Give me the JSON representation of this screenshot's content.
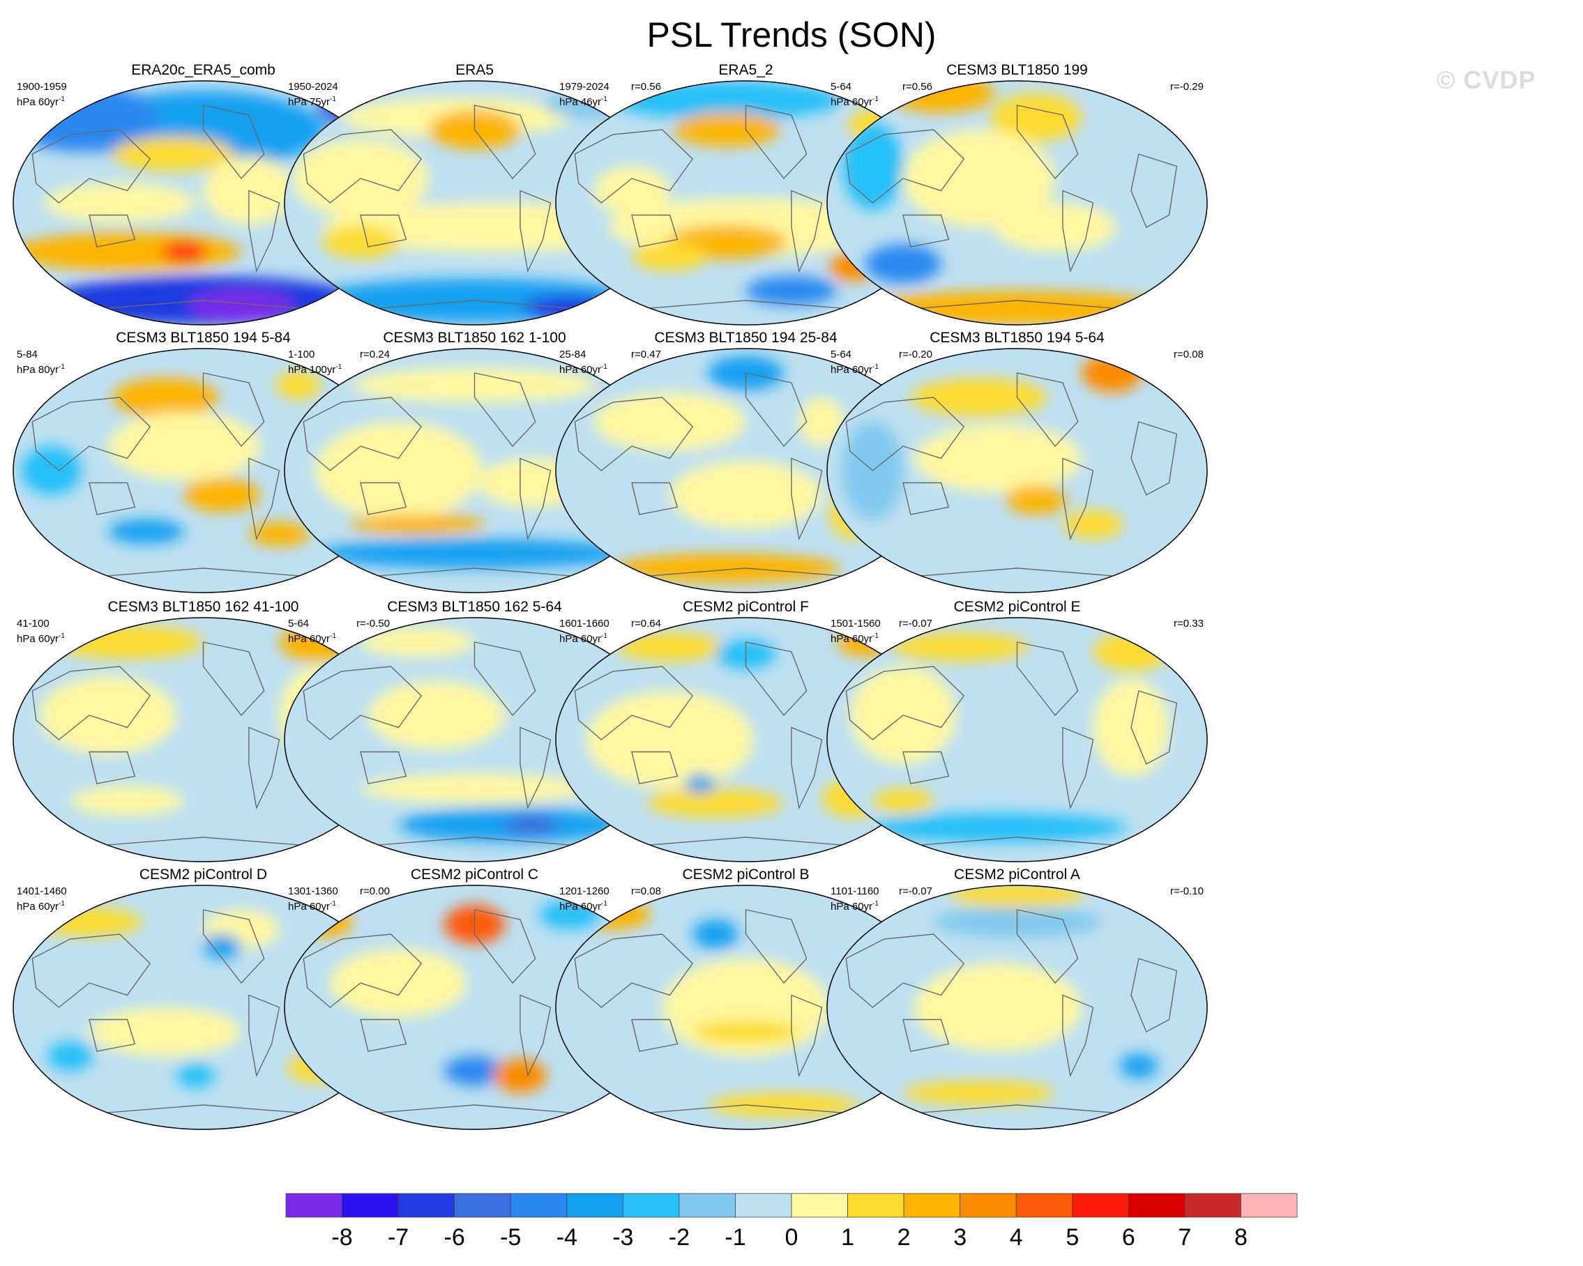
{
  "title": "PSL Trends (SON)",
  "watermark": "© CVDP",
  "chart_data": {
    "type": "heatmap",
    "title": "PSL Trends (SON)",
    "projection": "global map (Hammer)",
    "colorbar": {
      "tick_labels": [
        "-8",
        "-7",
        "-6",
        "-5",
        "-4",
        "-3",
        "-2",
        "-1",
        "0",
        "1",
        "2",
        "3",
        "4",
        "5",
        "6",
        "7",
        "8"
      ],
      "colors": [
        "#7a2be8",
        "#2b10f0",
        "#1f3ae0",
        "#3a6ee0",
        "#2a88f0",
        "#14a0f0",
        "#28c0f8",
        "#80c8ee",
        "#bde0f2",
        "#fef8a0",
        "#fddc30",
        "#fcb400",
        "#fc8c00",
        "#fc5c0a",
        "#fc1a0a",
        "#dc0000",
        "#c82828",
        "#fcb4b4"
      ]
    },
    "panels": [
      {
        "title": "ERA20c_ERA5_comb",
        "period": "1900-1959",
        "units": "hPa 60yr",
        "units_exp": "-1",
        "r": "",
        "blobs": [
          [
            0.5,
            0.2,
            0.32,
            0.16,
            -3
          ],
          [
            0.18,
            0.15,
            0.2,
            0.14,
            -4
          ],
          [
            0.9,
            0.1,
            0.1,
            0.1,
            -5
          ],
          [
            0.42,
            0.3,
            0.16,
            0.07,
            2
          ],
          [
            0.28,
            0.5,
            0.2,
            0.08,
            1
          ],
          [
            0.62,
            0.45,
            0.12,
            0.14,
            1
          ],
          [
            0.3,
            0.7,
            0.3,
            0.08,
            3
          ],
          [
            0.45,
            0.7,
            0.06,
            0.04,
            6
          ],
          [
            0.5,
            0.9,
            0.42,
            0.1,
            -6
          ],
          [
            0.6,
            0.92,
            0.14,
            0.06,
            -8
          ]
        ]
      },
      {
        "title": "ERA5",
        "period": "1950-2024",
        "units": "hPa 75yr",
        "units_exp": "-1",
        "r": "r=0.56",
        "blobs": [
          [
            0.45,
            0.15,
            0.3,
            0.08,
            1
          ],
          [
            0.5,
            0.2,
            0.12,
            0.08,
            3
          ],
          [
            0.2,
            0.4,
            0.18,
            0.16,
            1
          ],
          [
            0.55,
            0.6,
            0.45,
            0.1,
            1
          ],
          [
            0.2,
            0.66,
            0.1,
            0.07,
            2
          ],
          [
            0.85,
            0.64,
            0.07,
            0.08,
            2
          ],
          [
            0.5,
            0.9,
            0.44,
            0.09,
            -3
          ],
          [
            0.75,
            0.93,
            0.12,
            0.05,
            -6
          ],
          [
            0.8,
            0.1,
            0.12,
            0.05,
            -1
          ]
        ]
      },
      {
        "title": "ERA5_2",
        "period": "1979-2024",
        "units": "hPa 46yr",
        "units_exp": "-1",
        "r": "r=0.56",
        "blobs": [
          [
            0.45,
            0.08,
            0.3,
            0.08,
            -2
          ],
          [
            0.45,
            0.2,
            0.14,
            0.07,
            3
          ],
          [
            0.85,
            0.18,
            0.08,
            0.07,
            2
          ],
          [
            0.5,
            0.6,
            0.36,
            0.12,
            1
          ],
          [
            0.45,
            0.66,
            0.16,
            0.07,
            3
          ],
          [
            0.3,
            0.72,
            0.1,
            0.06,
            2
          ],
          [
            0.62,
            0.86,
            0.12,
            0.06,
            -4
          ],
          [
            0.78,
            0.76,
            0.06,
            0.06,
            4
          ],
          [
            0.2,
            0.45,
            0.1,
            0.1,
            1
          ]
        ]
      },
      {
        "title": "CESM3 BLT1850 199",
        "period": "5-64",
        "units": "hPa 60yr",
        "units_exp": "-1",
        "r": "r=-0.29",
        "blobs": [
          [
            0.3,
            0.05,
            0.14,
            0.08,
            3
          ],
          [
            0.55,
            0.15,
            0.12,
            0.1,
            2
          ],
          [
            0.4,
            0.4,
            0.2,
            0.2,
            1
          ],
          [
            0.12,
            0.35,
            0.08,
            0.18,
            -2
          ],
          [
            0.2,
            0.75,
            0.1,
            0.08,
            -4
          ],
          [
            0.6,
            0.6,
            0.16,
            0.1,
            1
          ],
          [
            0.5,
            0.93,
            0.4,
            0.07,
            3
          ]
        ]
      },
      {
        "title": "CESM3 BLT1850 194 5-84",
        "period": "5-84",
        "units": "hPa 80yr",
        "units_exp": "-1",
        "r": "r=0.24",
        "blobs": [
          [
            0.4,
            0.2,
            0.14,
            0.08,
            3
          ],
          [
            0.75,
            0.15,
            0.06,
            0.06,
            2
          ],
          [
            0.45,
            0.4,
            0.2,
            0.14,
            1
          ],
          [
            0.1,
            0.5,
            0.08,
            0.1,
            -2
          ],
          [
            0.55,
            0.6,
            0.1,
            0.07,
            3
          ],
          [
            0.35,
            0.75,
            0.1,
            0.05,
            -3
          ],
          [
            0.7,
            0.76,
            0.08,
            0.05,
            3
          ]
        ]
      },
      {
        "title": "CESM3 BLT1850 162 1-100",
        "period": "1-100",
        "units": "hPa 100yr",
        "units_exp": "-1",
        "r": "r=0.47",
        "blobs": [
          [
            0.5,
            0.15,
            0.32,
            0.07,
            1
          ],
          [
            0.3,
            0.5,
            0.22,
            0.2,
            1
          ],
          [
            0.35,
            0.72,
            0.18,
            0.04,
            3
          ],
          [
            0.5,
            0.84,
            0.42,
            0.06,
            -3
          ],
          [
            0.65,
            0.55,
            0.14,
            0.1,
            1
          ]
        ]
      },
      {
        "title": "CESM3 BLT1850 194 25-84",
        "period": "25-84",
        "units": "hPa 60yr",
        "units_exp": "-1",
        "r": "r=-0.20",
        "blobs": [
          [
            0.5,
            0.1,
            0.1,
            0.07,
            -3
          ],
          [
            0.3,
            0.3,
            0.2,
            0.12,
            1
          ],
          [
            0.7,
            0.3,
            0.06,
            0.1,
            1
          ],
          [
            0.5,
            0.6,
            0.2,
            0.14,
            1
          ],
          [
            0.45,
            0.9,
            0.3,
            0.06,
            3
          ],
          [
            0.78,
            0.68,
            0.06,
            0.1,
            2
          ]
        ]
      },
      {
        "title": "CESM3 BLT1850 194 5-64",
        "period": "5-64",
        "units": "hPa 60yr",
        "units_exp": "-1",
        "r": "r=0.08",
        "blobs": [
          [
            0.75,
            0.1,
            0.08,
            0.08,
            4
          ],
          [
            0.4,
            0.2,
            0.18,
            0.08,
            2
          ],
          [
            0.45,
            0.45,
            0.22,
            0.14,
            1
          ],
          [
            0.55,
            0.62,
            0.08,
            0.06,
            3
          ],
          [
            0.12,
            0.5,
            0.08,
            0.2,
            -1
          ],
          [
            0.7,
            0.72,
            0.08,
            0.06,
            2
          ]
        ]
      },
      {
        "title": "CESM3 BLT1850 162 41-100",
        "period": "41-100",
        "units": "hPa 60yr",
        "units_exp": "-1",
        "r": "r=-0.50",
        "blobs": [
          [
            0.3,
            0.1,
            0.2,
            0.07,
            2
          ],
          [
            0.8,
            0.1,
            0.1,
            0.08,
            3
          ],
          [
            0.25,
            0.4,
            0.18,
            0.16,
            1
          ],
          [
            0.8,
            0.4,
            0.1,
            0.2,
            1
          ],
          [
            0.3,
            0.75,
            0.15,
            0.06,
            1
          ]
        ]
      },
      {
        "title": "CESM3 BLT1850 162 5-64",
        "period": "5-64",
        "units": "hPa 60yr",
        "units_exp": "-1",
        "r": "r=0.64",
        "blobs": [
          [
            0.35,
            0.1,
            0.15,
            0.06,
            1
          ],
          [
            0.4,
            0.4,
            0.18,
            0.14,
            1
          ],
          [
            0.5,
            0.7,
            0.3,
            0.06,
            1
          ],
          [
            0.6,
            0.85,
            0.3,
            0.07,
            -3
          ],
          [
            0.65,
            0.85,
            0.07,
            0.04,
            -5
          ]
        ]
      },
      {
        "title": "CESM2 piControl F",
        "period": "1601-1660",
        "units": "hPa 60yr",
        "units_exp": "-1",
        "r": "r=-0.07",
        "blobs": [
          [
            0.3,
            0.12,
            0.14,
            0.06,
            2
          ],
          [
            0.82,
            0.1,
            0.08,
            0.06,
            3
          ],
          [
            0.5,
            0.15,
            0.08,
            0.06,
            -2
          ],
          [
            0.3,
            0.5,
            0.22,
            0.2,
            1
          ],
          [
            0.42,
            0.76,
            0.18,
            0.06,
            2
          ],
          [
            0.78,
            0.74,
            0.08,
            0.08,
            2
          ],
          [
            0.38,
            0.68,
            0.04,
            0.04,
            -3
          ]
        ]
      },
      {
        "title": "CESM2 piControl E",
        "period": "1501-1560",
        "units": "hPa 60yr",
        "units_exp": "-1",
        "r": "r=0.33",
        "blobs": [
          [
            0.35,
            0.12,
            0.18,
            0.06,
            2
          ],
          [
            0.8,
            0.14,
            0.1,
            0.08,
            2
          ],
          [
            0.2,
            0.4,
            0.14,
            0.2,
            1
          ],
          [
            0.8,
            0.45,
            0.1,
            0.2,
            1
          ],
          [
            0.45,
            0.86,
            0.34,
            0.06,
            -2
          ],
          [
            0.2,
            0.75,
            0.08,
            0.05,
            2
          ]
        ]
      },
      {
        "title": "CESM2 piControl D",
        "period": "1401-1460",
        "units": "hPa 60yr",
        "units_exp": "-1",
        "r": "r=0.00",
        "blobs": [
          [
            0.2,
            0.15,
            0.14,
            0.06,
            2
          ],
          [
            0.6,
            0.18,
            0.1,
            0.08,
            1
          ],
          [
            0.55,
            0.25,
            0.05,
            0.05,
            -3
          ],
          [
            0.4,
            0.6,
            0.2,
            0.1,
            1
          ],
          [
            0.15,
            0.7,
            0.06,
            0.06,
            -2
          ],
          [
            0.48,
            0.78,
            0.05,
            0.05,
            -2
          ],
          [
            0.8,
            0.75,
            0.08,
            0.06,
            2
          ]
        ]
      },
      {
        "title": "CESM2 piControl C",
        "period": "1301-1360",
        "units": "hPa 60yr",
        "units_exp": "-1",
        "r": "r=0.08",
        "blobs": [
          [
            0.5,
            0.16,
            0.08,
            0.08,
            5
          ],
          [
            0.1,
            0.15,
            0.08,
            0.06,
            3
          ],
          [
            0.75,
            0.12,
            0.08,
            0.06,
            -2
          ],
          [
            0.3,
            0.4,
            0.18,
            0.14,
            1
          ],
          [
            0.5,
            0.76,
            0.08,
            0.06,
            -4
          ],
          [
            0.62,
            0.78,
            0.07,
            0.07,
            4
          ]
        ]
      },
      {
        "title": "CESM2 piControl B",
        "period": "1201-1260",
        "units": "hPa 60yr",
        "units_exp": "-1",
        "r": "r=-0.07",
        "blobs": [
          [
            0.15,
            0.12,
            0.1,
            0.06,
            3
          ],
          [
            0.42,
            0.2,
            0.06,
            0.06,
            -3
          ],
          [
            0.5,
            0.5,
            0.22,
            0.2,
            1
          ],
          [
            0.5,
            0.6,
            0.14,
            0.05,
            2
          ],
          [
            0.6,
            0.9,
            0.2,
            0.05,
            2
          ]
        ]
      },
      {
        "title": "CESM2 piControl A",
        "period": "1101-1160",
        "units": "hPa 60yr",
        "units_exp": "-1",
        "r": "r=-0.10",
        "blobs": [
          [
            0.5,
            0.04,
            0.18,
            0.05,
            2
          ],
          [
            0.5,
            0.15,
            0.22,
            0.06,
            -1
          ],
          [
            0.45,
            0.5,
            0.22,
            0.18,
            1
          ],
          [
            0.82,
            0.74,
            0.05,
            0.05,
            -3
          ],
          [
            0.4,
            0.85,
            0.2,
            0.05,
            2
          ]
        ]
      }
    ]
  }
}
